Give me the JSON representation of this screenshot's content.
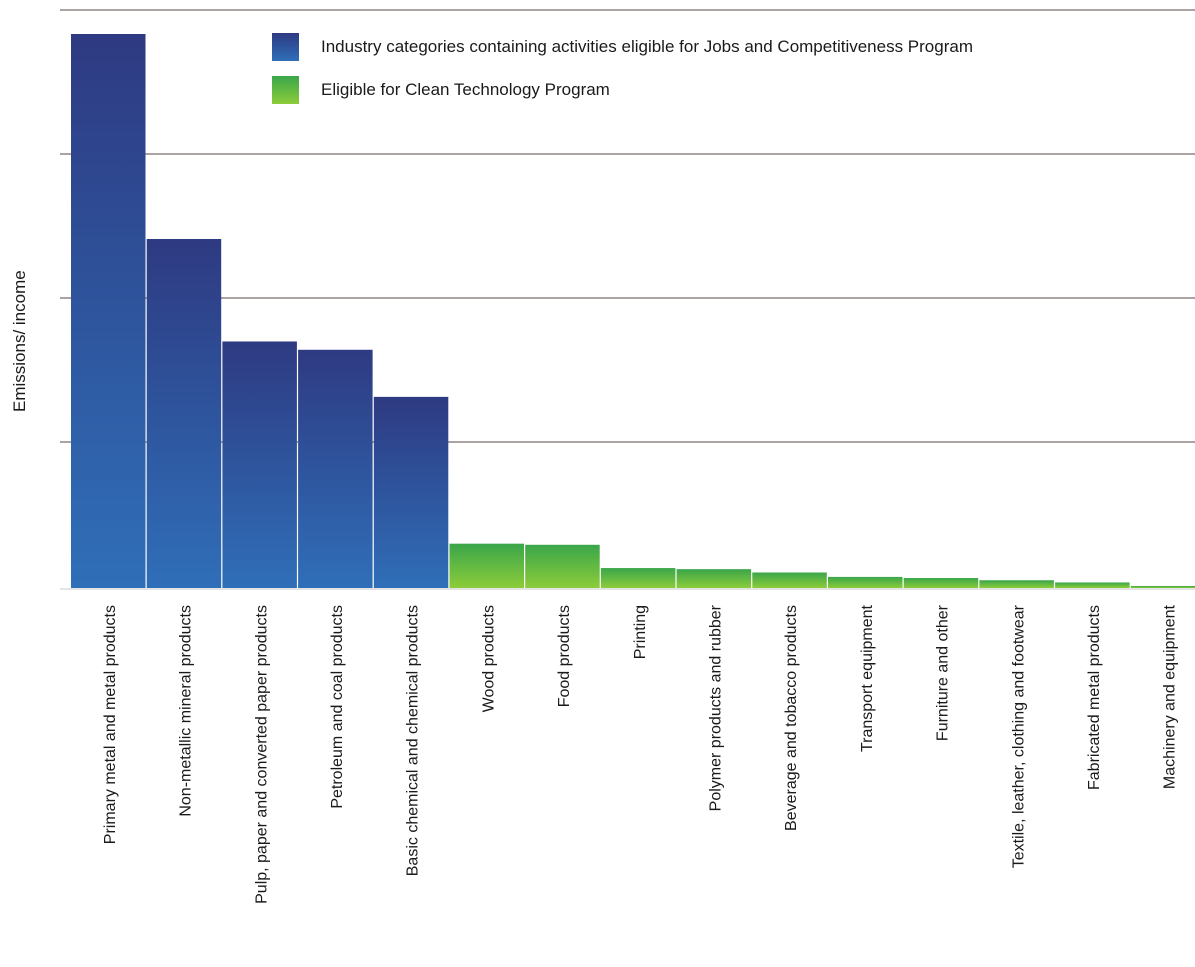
{
  "colors": {
    "jobs_program_top": "#2e3a82",
    "jobs_program_bottom": "#2f6fb8",
    "clean_tech_top": "#3aa64a",
    "clean_tech_bottom": "#8ccc3a",
    "gridline": "#7a6a6a"
  },
  "chart_data": {
    "type": "bar",
    "title": "",
    "xlabel": "",
    "ylabel": "Emissions/ income",
    "ylim": [
      0,
      100
    ],
    "grid": "horizontal lines",
    "legend_position": "top-right",
    "legend": [
      {
        "label": "Industry categories containing activities eligible for Jobs and Competitiveness Program",
        "color": "blue"
      },
      {
        "label": "Eligible for Clean Technology Program",
        "color": "green"
      }
    ],
    "categories": [
      "Primary metal and metal products",
      "Non-metallic mineral products",
      "Pulp, paper and converted paper products",
      "Petroleum and coal products",
      "Basic chemical and chemical products",
      "Wood products",
      "Food products",
      "Printing",
      "Polymer products and rubber",
      "Beverage and tobacco products",
      "Transport equipment",
      "Furniture and other",
      "Textile, leather, clothing and footwear",
      "Fabricated metal products",
      "Machinery and equipment"
    ],
    "values": [
      100,
      63,
      44.5,
      43,
      34.5,
      8,
      7.8,
      3.6,
      3.4,
      2.8,
      2.0,
      1.8,
      1.4,
      1.0,
      0.3
    ],
    "program": [
      "jobs",
      "jobs",
      "jobs",
      "jobs",
      "jobs",
      "clean",
      "clean",
      "clean",
      "clean",
      "clean",
      "clean",
      "clean",
      "clean",
      "clean",
      "clean"
    ]
  }
}
